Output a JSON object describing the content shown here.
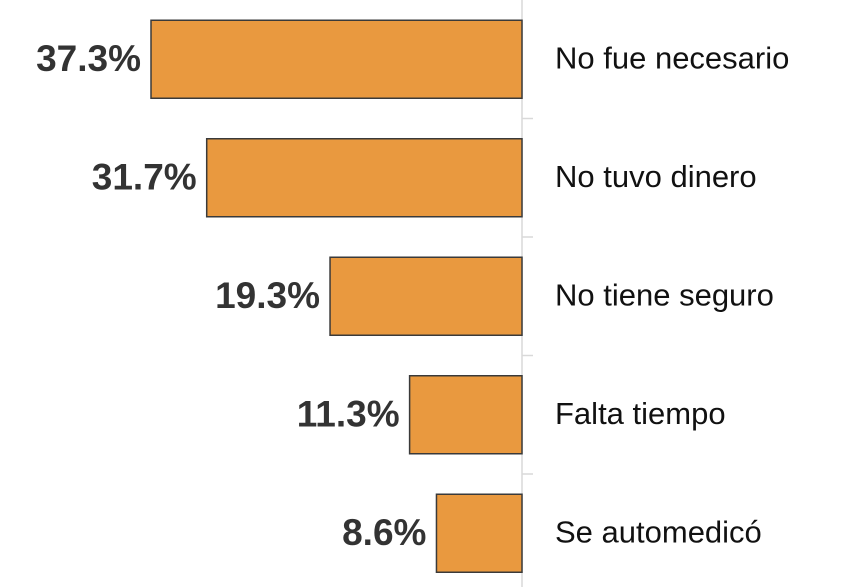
{
  "chart_data": {
    "type": "bar",
    "orientation": "horizontal",
    "categories": [
      "No fue necesario",
      "No tuvo dinero",
      "No tiene seguro",
      "Falta tiempo",
      "Se automedicó"
    ],
    "values": [
      37.3,
      31.7,
      19.3,
      11.3,
      8.6
    ],
    "value_labels": [
      "37.3%",
      "31.7%",
      "19.3%",
      "11.3%",
      "8.6%"
    ],
    "color": "#E9993F"
  }
}
